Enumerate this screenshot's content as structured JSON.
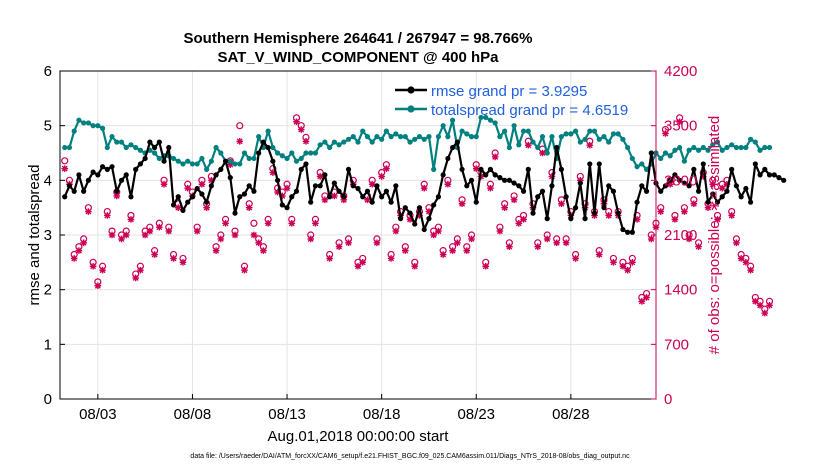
{
  "chart_data": {
    "type": "line",
    "title": "Southern Hemisphere 264641 / 267947 = 98.766%",
    "subtitle": "SAT_V_WIND_COMPONENT @ 400 hPa",
    "xlabel": "Aug.01,2018 00:00:00 start",
    "ylabel_left": "rmse and totalspread",
    "ylabel_right": "# of obs: o=possible; ∗=assimilated",
    "x_tick_labels": [
      "08/03",
      "08/08",
      "08/13",
      "08/18",
      "08/23",
      "08/28"
    ],
    "x_tick_days": [
      3,
      8,
      13,
      18,
      23,
      28
    ],
    "xlim": [
      1,
      32.5
    ],
    "ylim_left": [
      0,
      6
    ],
    "ylim_right": [
      0,
      4200
    ],
    "y_ticks_left": [
      "0",
      "1",
      "2",
      "3",
      "4",
      "5",
      "6"
    ],
    "y_ticks_right": [
      "0",
      "700",
      "1400",
      "2100",
      "2800",
      "3500",
      "4200"
    ],
    "grid": true,
    "legend": {
      "placement": "top-right",
      "entries": [
        "rmse grand pr = 3.9295",
        "totalspread grand pr = 4.6519"
      ]
    },
    "colors": {
      "rmse": "#000000",
      "spread": "#00807f",
      "obs": "#cc0055",
      "legend_text": "#1f5fe0"
    },
    "series": [
      {
        "name": "rmse grand pr = 3.9295",
        "axis": "left",
        "x_day_start": 1.25,
        "x_step_days": 0.25,
        "values": [
          3.7,
          3.9,
          3.8,
          4.1,
          3.8,
          4.0,
          4.15,
          4.1,
          4.25,
          4.2,
          4.25,
          3.8,
          4.0,
          4.1,
          3.7,
          4.2,
          4.3,
          4.4,
          4.7,
          4.6,
          4.7,
          4.35,
          4.6,
          3.55,
          3.7,
          3.45,
          3.6,
          3.7,
          3.85,
          3.75,
          3.6,
          3.9,
          4.1,
          4.2,
          4.35,
          4.05,
          3.4,
          3.7,
          3.75,
          3.9,
          3.8,
          4.5,
          4.7,
          4.6,
          4.35,
          4.0,
          3.55,
          3.5,
          3.7,
          3.8,
          4.2,
          4.3,
          3.6,
          3.9,
          3.9,
          4.1,
          3.7,
          3.95,
          3.8,
          3.7,
          4.2,
          3.9,
          3.85,
          3.7,
          3.8,
          3.6,
          3.9,
          3.7,
          3.8,
          3.6,
          3.9,
          3.3,
          3.5,
          3.4,
          3.2,
          3.5,
          3.1,
          3.3,
          3.55,
          3.7,
          4.1,
          4.4,
          4.6,
          4.7,
          4.2,
          3.9,
          4.0,
          3.6,
          4.2,
          4.1,
          4.2,
          4.1,
          4.05,
          4.0,
          4.0,
          3.95,
          3.9,
          3.8,
          4.2,
          3.4,
          3.7,
          3.8,
          3.3,
          3.9,
          4.6,
          4.2,
          3.7,
          3.3,
          3.5,
          3.95,
          3.3,
          4.3,
          3.4,
          4.3,
          3.5,
          3.9,
          3.8,
          3.4,
          3.1,
          3.05,
          3.05,
          3.6,
          3.9,
          3.8,
          4.5,
          3.95,
          3.8,
          3.9,
          4.0,
          4.1,
          4.0,
          3.95,
          3.9,
          4.2,
          3.8,
          4.3,
          3.6,
          3.75,
          3.6,
          3.7,
          3.8,
          4.2,
          3.9,
          3.7,
          3.85,
          3.6,
          4.3,
          4.1,
          4.2,
          4.1,
          4.1,
          4.05,
          4.0
        ]
      },
      {
        "name": "totalspread grand pr = 4.6519",
        "axis": "left",
        "x_day_start": 1.25,
        "x_step_days": 0.25,
        "values": [
          4.6,
          4.6,
          4.9,
          5.1,
          5.05,
          5.05,
          5.0,
          5.0,
          4.95,
          4.6,
          4.8,
          4.7,
          4.7,
          4.6,
          4.65,
          4.6,
          4.55,
          4.5,
          4.55,
          4.5,
          4.4,
          4.45,
          4.45,
          4.4,
          4.35,
          4.3,
          4.35,
          4.3,
          4.3,
          4.4,
          4.2,
          4.35,
          4.6,
          4.5,
          4.35,
          4.35,
          4.3,
          4.3,
          4.5,
          4.4,
          4.4,
          4.8,
          4.6,
          4.9,
          4.6,
          4.5,
          4.45,
          4.4,
          4.5,
          4.35,
          4.4,
          4.5,
          4.5,
          4.5,
          4.65,
          4.7,
          4.6,
          4.7,
          4.65,
          4.7,
          4.75,
          4.8,
          4.7,
          4.9,
          4.8,
          4.7,
          4.8,
          4.75,
          4.9,
          4.8,
          4.85,
          4.8,
          4.8,
          4.7,
          4.75,
          4.8,
          4.75,
          4.8,
          4.2,
          4.8,
          5.0,
          4.8,
          5.1,
          4.6,
          4.9,
          4.85,
          4.8,
          4.8,
          5.15,
          5.15,
          5.1,
          5.05,
          4.8,
          4.9,
          4.6,
          5.0,
          4.65,
          4.9,
          4.9,
          4.7,
          4.6,
          4.8,
          4.5,
          4.8,
          4.4,
          4.8,
          4.85,
          4.85,
          4.9,
          4.7,
          4.75,
          4.9,
          4.9,
          4.75,
          4.8,
          4.7,
          4.85,
          4.85,
          4.75,
          4.6,
          4.4,
          4.25,
          4.3,
          4.2,
          4.3,
          4.5,
          4.4,
          4.5,
          4.45,
          4.55,
          4.6,
          4.35,
          4.55,
          4.6,
          4.55,
          4.6,
          4.55,
          4.65,
          4.7,
          4.55,
          4.6,
          4.65,
          4.6,
          4.6,
          4.6,
          4.75,
          4.7,
          4.55,
          4.6,
          4.6
        ]
      },
      {
        "name": "",
        "axis": "right",
        "x_day_start": 1.25,
        "x_step_days": 0.25,
        "values": [
          2950,
          2750,
          1800,
          1900,
          2000,
          2400,
          1700,
          1450,
          1650,
          2350,
          2100,
          2600,
          2050,
          2100,
          2300,
          1550,
          1650,
          2100,
          2150,
          1850,
          2200,
          2750,
          2150,
          1800,
          2450,
          1750,
          2700,
          2600,
          2150,
          2750,
          2450,
          2800,
          1900,
          2050,
          2250,
          3000,
          2100,
          3300,
          1650,
          2450,
          2100,
          2000,
          1900,
          2250,
          2900,
          2650,
          2600,
          2700,
          2250,
          3550,
          3450,
          3300,
          2050,
          2250,
          2850,
          2550,
          1800,
          2600,
          1950,
          2550,
          2000,
          2750,
          1700,
          1750,
          2550,
          2750,
          2000,
          2850,
          2950,
          1800,
          2150,
          2350,
          1900,
          2300,
          1700,
          2350,
          2700,
          2400,
          2100,
          2150,
          1850,
          2750,
          1900,
          2000,
          2500,
          1900,
          2050,
          2950,
          2850,
          1700,
          2700,
          3100,
          2150,
          2450,
          1950,
          2550,
          2250,
          2300,
          3250,
          2450,
          1950,
          3150,
          2050,
          2850,
          2000,
          2500,
          2000,
          2350,
          1800,
          2800,
          2450,
          3250,
          2350,
          1850,
          2500,
          2350,
          1750,
          2350,
          1700,
          1650,
          1750,
          2300,
          1250,
          1300,
          2050,
          2200,
          2400,
          3400,
          2750,
          2300,
          3550,
          2400,
          2050,
          2500,
          1950,
          2850,
          2450,
          2750,
          2300,
          2700,
          2750,
          2350,
          2000,
          1800,
          1750,
          1650,
          1250,
          1200,
          1100,
          1200
        ]
      }
    ],
    "possible_markers": {
      "axis": "right",
      "x_day_start": 1.25,
      "x_step_days": 0.25,
      "values": [
        3050,
        2800,
        1850,
        1950,
        2050,
        2450,
        1750,
        1500,
        1700,
        2400,
        2150,
        2650,
        2100,
        2150,
        2350,
        1600,
        1700,
        2150,
        2200,
        1900,
        2250,
        2800,
        2200,
        1850,
        2500,
        1800,
        2750,
        2650,
        2200,
        2800,
        2500,
        2850,
        1950,
        2100,
        2300,
        3050,
        2150,
        3500,
        1700,
        2500,
        2250,
        2050,
        1950,
        2300,
        2950,
        2700,
        2650,
        2750,
        2300,
        3600,
        3500,
        3350,
        2100,
        2300,
        2900,
        2600,
        1850,
        2650,
        2000,
        2600,
        2050,
        2800,
        1750,
        1800,
        2600,
        2800,
        2050,
        2900,
        3000,
        1850,
        2200,
        2400,
        1950,
        2350,
        1750,
        2400,
        2750,
        2450,
        2150,
        2200,
        1900,
        2800,
        1950,
        2050,
        2550,
        1950,
        2100,
        3000,
        2900,
        1750,
        2750,
        3150,
        2200,
        2500,
        2000,
        2600,
        2300,
        2350,
        3300,
        2500,
        2000,
        3200,
        2100,
        2900,
        2050,
        2550,
        2050,
        2400,
        1850,
        2850,
        2500,
        3300,
        2400,
        1900,
        2550,
        2400,
        1800,
        2400,
        1750,
        1700,
        1800,
        2350,
        1300,
        1350,
        2100,
        2250,
        2450,
        3450,
        2800,
        2350,
        3600,
        2450,
        2100,
        2550,
        2000,
        2900,
        2500,
        2800,
        2350,
        2750,
        2800,
        2400,
        2050,
        1850,
        1800,
        1700,
        1300,
        1250,
        1150,
        1250
      ]
    },
    "footnote": "data file: /Users/raeder/DAI/ATM_forcXX/CAM6_setup/f.e21.FHIST_BGC.f09_025.CAM6assim.011/Diags_NTrS_2018-08/obs_diag_output.nc"
  }
}
